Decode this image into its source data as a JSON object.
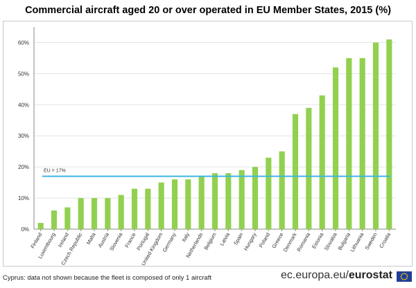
{
  "title": "Commercial aircraft aged 20 or over operated in EU Member States, 2015 (%)",
  "chart_data": {
    "type": "bar",
    "categories": [
      "Finland",
      "Luxembourg",
      "Ireland",
      "Czech Republic",
      "Malta",
      "Austria",
      "Slovenia",
      "France",
      "Portugal",
      "United Kingdom",
      "Germany",
      "Italy",
      "Netherlands",
      "Belgium",
      "Latvia",
      "Spain",
      "Hungary",
      "Poland",
      "Greece",
      "Denmark",
      "Romania",
      "Estonia",
      "Slovakia",
      "Bulgaria",
      "Lithuania",
      "Sweden",
      "Croatia"
    ],
    "values": [
      2,
      6,
      7,
      10,
      10,
      10,
      11,
      13,
      13,
      15,
      16,
      16,
      17,
      18,
      18,
      19,
      20,
      23,
      25,
      37,
      39,
      43,
      52,
      55,
      55,
      60,
      61
    ],
    "ylim": [
      0,
      65
    ],
    "yticks": [
      "0%",
      "10%",
      "20%",
      "30%",
      "40%",
      "50%",
      "60%"
    ],
    "ytick_values": [
      0,
      10,
      20,
      30,
      40,
      50,
      60
    ],
    "reference_line": {
      "label": "EU = 17%",
      "value": 17
    },
    "bar_color": "#92d050",
    "line_color": "#3cb6e3",
    "grid": true
  },
  "footnote": "Cyprus: data not shown because the fleet is composed of only 1 aircraft",
  "source": {
    "prefix": "ec.europa.eu/",
    "brand": "eurostat"
  },
  "flag_color": "#1f3d99"
}
